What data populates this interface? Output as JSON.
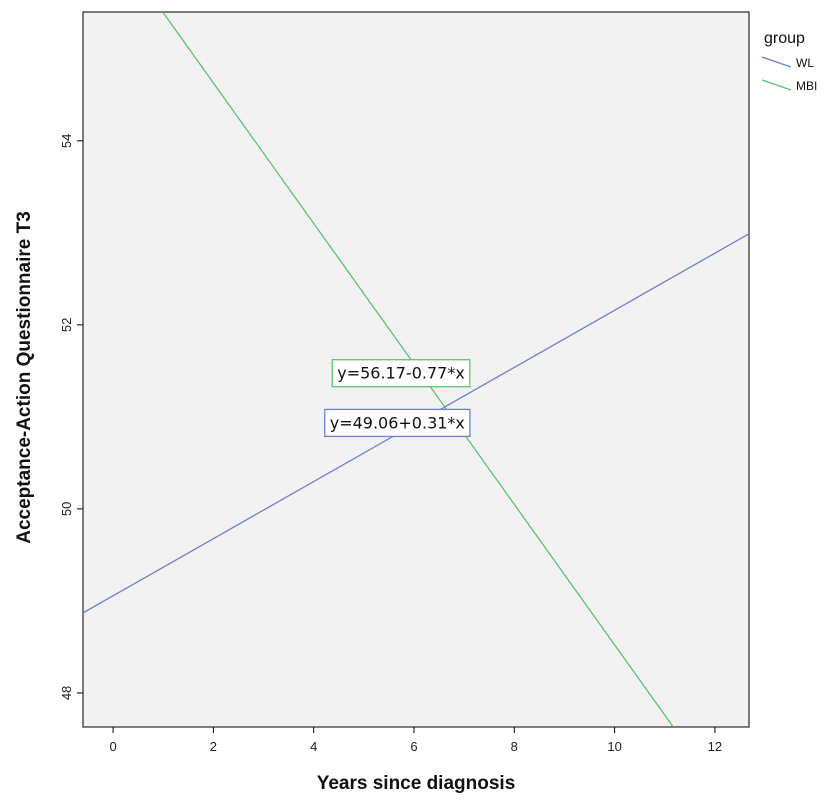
{
  "chart_data": {
    "type": "line",
    "xlabel": "Years since diagnosis",
    "ylabel": "Acceptance-Action Questionnaire T3",
    "xlim": [
      -0.6,
      12.68
    ],
    "ylim": [
      47.63,
      55.4
    ],
    "x_ticks": [
      0,
      2,
      4,
      6,
      8,
      10,
      12
    ],
    "y_ticks": [
      48,
      50,
      52,
      54
    ],
    "grid": false,
    "background": "#f2f2f2",
    "legend": {
      "title": "group",
      "placement": "top-right",
      "entries": [
        "WL",
        "MBI"
      ]
    },
    "series": [
      {
        "name": "WL",
        "color": "#6f7fcf",
        "intercept": 49.06,
        "slope": 0.31,
        "x": [
          -0.6,
          12.68
        ],
        "y": [
          48.87,
          52.99
        ],
        "equation": "y=49.06+0.31*x",
        "equation_anchor": [
          4.2,
          50.94
        ]
      },
      {
        "name": "MBI",
        "color": "#5cc46a",
        "intercept": 56.17,
        "slope": -0.77,
        "x": [
          0.99,
          11.17
        ],
        "y": [
          55.4,
          47.63
        ],
        "equation": "y=56.17-0.77*x",
        "equation_anchor": [
          4.35,
          51.48
        ]
      }
    ]
  }
}
